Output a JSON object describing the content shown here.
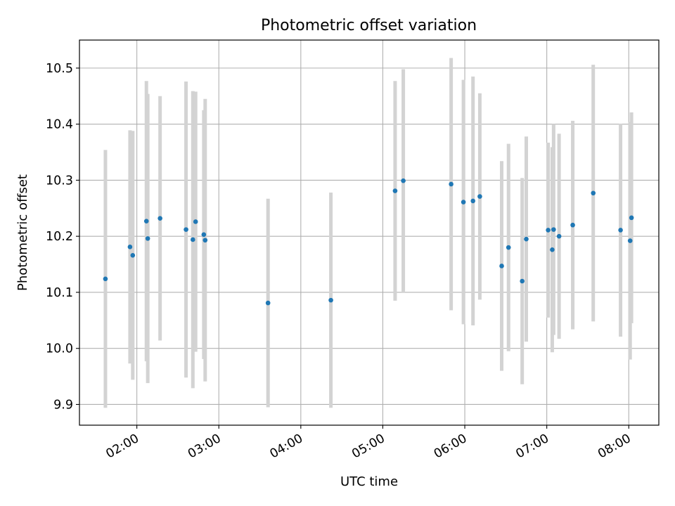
{
  "chart_data": {
    "type": "scatter",
    "title": "Photometric offset variation",
    "xlabel": "UTC time",
    "ylabel": "Photometric offset",
    "x_tick_labels": [
      "02:00",
      "03:00",
      "04:00",
      "05:00",
      "06:00",
      "07:00",
      "08:00"
    ],
    "y_ticks": [
      9.9,
      10.0,
      10.1,
      10.2,
      10.3,
      10.4,
      10.5
    ],
    "y_tick_labels": [
      "9.9",
      "10.0",
      "10.1",
      "10.2",
      "10.3",
      "10.4",
      "10.5"
    ],
    "xlim": [
      "01:18",
      "08:22"
    ],
    "ylim": [
      9.863,
      10.55
    ],
    "grid": true,
    "colors": {
      "point": "#1f77b4",
      "errorbar": "#d3d3d3",
      "grid": "#b0b0b0"
    },
    "points": [
      {
        "t": "01:37",
        "y": 10.124,
        "err": 0.23
      },
      {
        "t": "01:55",
        "y": 10.181,
        "err": 0.208
      },
      {
        "t": "01:57",
        "y": 10.166,
        "err": 0.222
      },
      {
        "t": "02:07",
        "y": 10.227,
        "err": 0.25
      },
      {
        "t": "02:08",
        "y": 10.196,
        "err": 0.258
      },
      {
        "t": "02:17",
        "y": 10.232,
        "err": 0.218
      },
      {
        "t": "02:36",
        "y": 10.212,
        "err": 0.264
      },
      {
        "t": "02:41",
        "y": 10.194,
        "err": 0.265
      },
      {
        "t": "02:43",
        "y": 10.226,
        "err": 0.232
      },
      {
        "t": "02:49",
        "y": 10.203,
        "err": 0.222
      },
      {
        "t": "02:50",
        "y": 10.193,
        "err": 0.252
      },
      {
        "t": "03:36",
        "y": 10.081,
        "err": 0.186
      },
      {
        "t": "04:22",
        "y": 10.086,
        "err": 0.192
      },
      {
        "t": "05:09",
        "y": 10.281,
        "err": 0.196
      },
      {
        "t": "05:15",
        "y": 10.299,
        "err": 0.199
      },
      {
        "t": "05:50",
        "y": 10.293,
        "err": 0.225
      },
      {
        "t": "05:59",
        "y": 10.261,
        "err": 0.218
      },
      {
        "t": "06:06",
        "y": 10.263,
        "err": 0.222
      },
      {
        "t": "06:11",
        "y": 10.271,
        "err": 0.184
      },
      {
        "t": "06:27",
        "y": 10.147,
        "err": 0.187
      },
      {
        "t": "06:32",
        "y": 10.18,
        "err": 0.185
      },
      {
        "t": "06:42",
        "y": 10.12,
        "err": 0.184
      },
      {
        "t": "06:45",
        "y": 10.195,
        "err": 0.183
      },
      {
        "t": "07:01",
        "y": 10.211,
        "err": 0.156
      },
      {
        "t": "07:04",
        "y": 10.176,
        "err": 0.183
      },
      {
        "t": "07:05",
        "y": 10.212,
        "err": 0.188
      },
      {
        "t": "07:09",
        "y": 10.2,
        "err": 0.183
      },
      {
        "t": "07:19",
        "y": 10.22,
        "err": 0.186
      },
      {
        "t": "07:34",
        "y": 10.277,
        "err": 0.229
      },
      {
        "t": "07:54",
        "y": 10.211,
        "err": 0.19
      },
      {
        "t": "08:01",
        "y": 10.192,
        "err": 0.212
      },
      {
        "t": "08:02",
        "y": 10.233,
        "err": 0.188
      }
    ]
  }
}
